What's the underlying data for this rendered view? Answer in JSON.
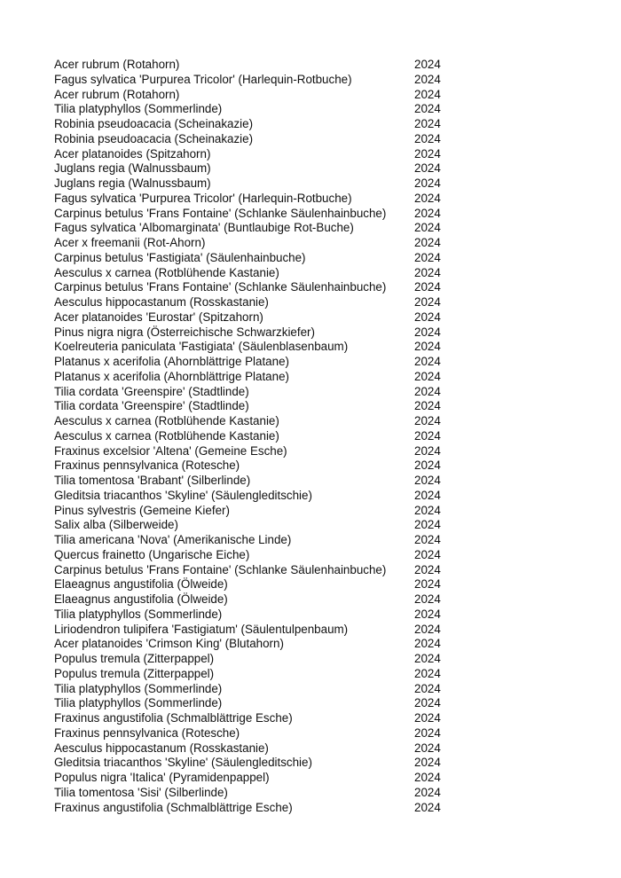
{
  "rows": [
    {
      "name": "Acer rubrum (Rotahorn)",
      "year": "2024"
    },
    {
      "name": "Fagus sylvatica 'Purpurea Tricolor' (Harlequin-Rotbuche)",
      "year": "2024"
    },
    {
      "name": "Acer rubrum (Rotahorn)",
      "year": "2024"
    },
    {
      "name": "Tilia platyphyllos (Sommerlinde)",
      "year": "2024"
    },
    {
      "name": "Robinia pseudoacacia (Scheinakazie)",
      "year": "2024"
    },
    {
      "name": "Robinia pseudoacacia (Scheinakazie)",
      "year": "2024"
    },
    {
      "name": "Acer platanoides (Spitzahorn)",
      "year": "2024"
    },
    {
      "name": "Juglans regia (Walnussbaum)",
      "year": "2024"
    },
    {
      "name": "Juglans regia (Walnussbaum)",
      "year": "2024"
    },
    {
      "name": "Fagus sylvatica 'Purpurea Tricolor' (Harlequin-Rotbuche)",
      "year": "2024"
    },
    {
      "name": "Carpinus betulus 'Frans Fontaine' (Schlanke Säulenhainbuche)",
      "year": "2024"
    },
    {
      "name": "Fagus sylvatica 'Albomarginata' (Buntlaubige Rot-Buche)",
      "year": "2024"
    },
    {
      "name": "Acer x freemanii (Rot-Ahorn)",
      "year": "2024"
    },
    {
      "name": "Carpinus betulus 'Fastigiata' (Säulenhainbuche)",
      "year": "2024"
    },
    {
      "name": "Aesculus x carnea (Rotblühende Kastanie)",
      "year": "2024"
    },
    {
      "name": "Carpinus betulus 'Frans Fontaine' (Schlanke Säulenhainbuche)",
      "year": "2024"
    },
    {
      "name": "Aesculus hippocastanum (Rosskastanie)",
      "year": "2024"
    },
    {
      "name": "Acer platanoides 'Eurostar' (Spitzahorn)",
      "year": "2024"
    },
    {
      "name": "Pinus nigra nigra (Österreichische Schwarzkiefer)",
      "year": "2024"
    },
    {
      "name": "Koelreuteria paniculata 'Fastigiata' (Säulenblasenbaum)",
      "year": "2024"
    },
    {
      "name": "Platanus x acerifolia (Ahornblättrige Platane)",
      "year": "2024"
    },
    {
      "name": "Platanus x acerifolia (Ahornblättrige Platane)",
      "year": "2024"
    },
    {
      "name": "Tilia cordata 'Greenspire' (Stadtlinde)",
      "year": "2024"
    },
    {
      "name": "Tilia cordata 'Greenspire' (Stadtlinde)",
      "year": "2024"
    },
    {
      "name": "Aesculus x carnea (Rotblühende Kastanie)",
      "year": "2024"
    },
    {
      "name": "Aesculus x carnea (Rotblühende Kastanie)",
      "year": "2024"
    },
    {
      "name": "Fraxinus excelsior 'Altena' (Gemeine Esche)",
      "year": "2024"
    },
    {
      "name": "Fraxinus pennsylvanica (Rotesche)",
      "year": "2024"
    },
    {
      "name": "Tilia tomentosa 'Brabant' (Silberlinde)",
      "year": "2024"
    },
    {
      "name": "Gleditsia triacanthos 'Skyline' (Säulengleditschie)",
      "year": "2024"
    },
    {
      "name": "Pinus sylvestris (Gemeine Kiefer)",
      "year": "2024"
    },
    {
      "name": "Salix alba (Silberweide)",
      "year": "2024"
    },
    {
      "name": "Tilia americana 'Nova' (Amerikanische Linde)",
      "year": "2024"
    },
    {
      "name": "Quercus frainetto (Ungarische Eiche)",
      "year": "2024"
    },
    {
      "name": "Carpinus betulus 'Frans Fontaine' (Schlanke Säulenhainbuche)",
      "year": "2024"
    },
    {
      "name": "Elaeagnus angustifolia (Ölweide)",
      "year": "2024"
    },
    {
      "name": "Elaeagnus angustifolia (Ölweide)",
      "year": "2024"
    },
    {
      "name": "Tilia platyphyllos (Sommerlinde)",
      "year": "2024"
    },
    {
      "name": "Liriodendron tulipifera 'Fastigiatum' (Säulentulpenbaum)",
      "year": "2024"
    },
    {
      "name": "Acer platanoides 'Crimson King' (Blutahorn)",
      "year": "2024"
    },
    {
      "name": "Populus tremula (Zitterpappel)",
      "year": "2024"
    },
    {
      "name": "Populus tremula (Zitterpappel)",
      "year": "2024"
    },
    {
      "name": "Tilia platyphyllos (Sommerlinde)",
      "year": "2024"
    },
    {
      "name": "Tilia platyphyllos (Sommerlinde)",
      "year": "2024"
    },
    {
      "name": "Fraxinus angustifolia (Schmalblättrige Esche)",
      "year": "2024"
    },
    {
      "name": "Fraxinus pennsylvanica (Rotesche)",
      "year": "2024"
    },
    {
      "name": "Aesculus hippocastanum (Rosskastanie)",
      "year": "2024"
    },
    {
      "name": "Gleditsia triacanthos 'Skyline' (Säulengleditschie)",
      "year": "2024"
    },
    {
      "name": "Populus nigra 'Italica' (Pyramidenpappel)",
      "year": "2024"
    },
    {
      "name": "Tilia tomentosa 'Sisi' (Silberlinde)",
      "year": "2024"
    },
    {
      "name": "Fraxinus angustifolia (Schmalblättrige Esche)",
      "year": "2024"
    }
  ]
}
